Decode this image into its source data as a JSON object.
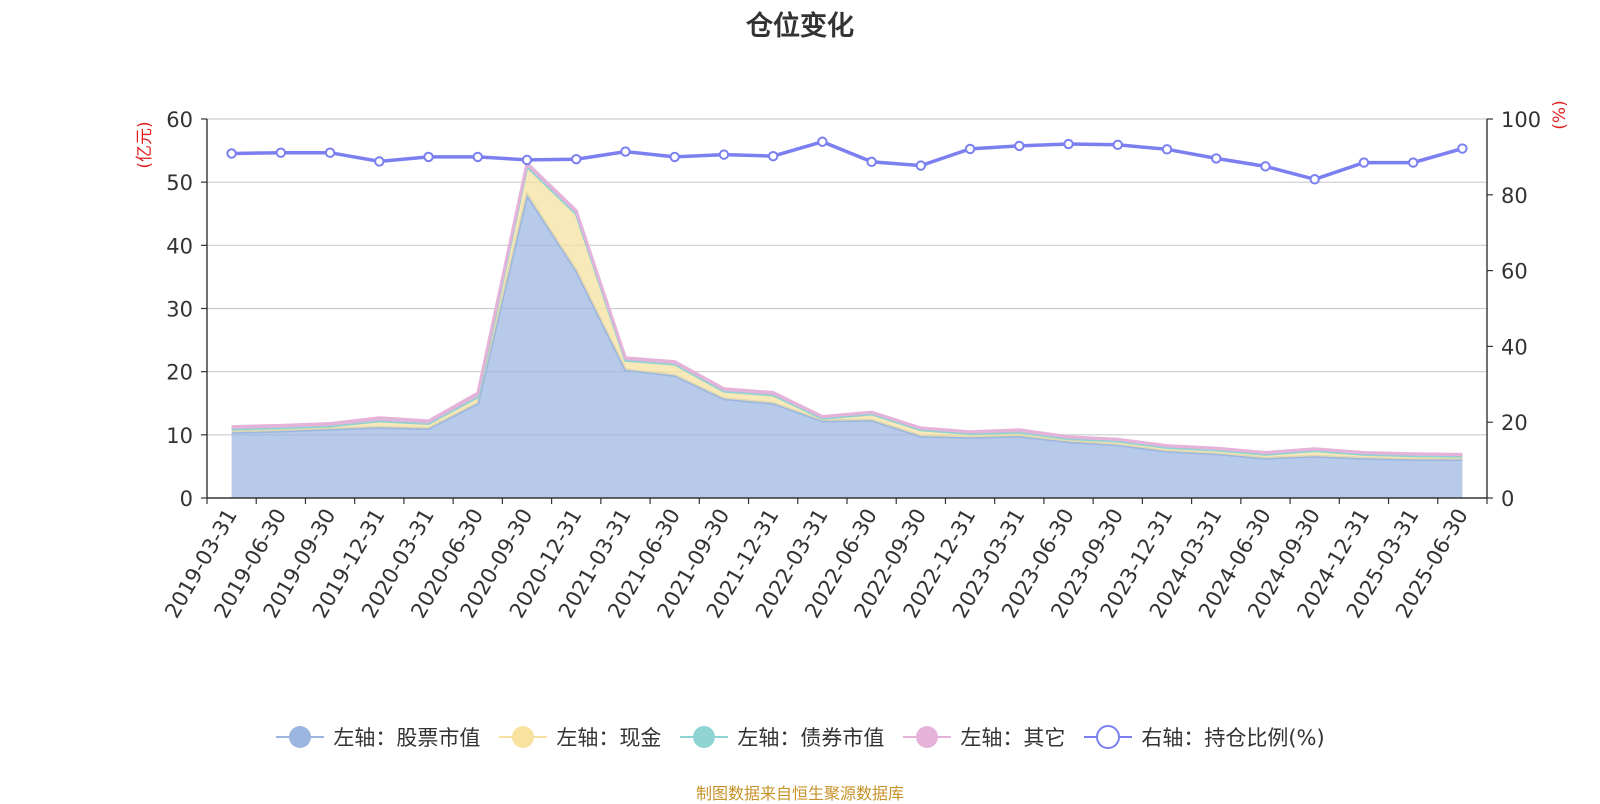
{
  "chart_data": {
    "type": "area",
    "title": "仓位变化",
    "ylabel_left": "(亿元)",
    "ylabel_right": "(%)",
    "ylim_left": [
      0,
      60
    ],
    "yticks_left": [
      0,
      10,
      20,
      30,
      40,
      50,
      60
    ],
    "ylim_right": [
      0,
      100
    ],
    "yticks_right": [
      0,
      20,
      40,
      60,
      80,
      100
    ],
    "grid": true,
    "legend_position": "bottom",
    "categories": [
      "2019-03-31",
      "2019-06-30",
      "2019-09-30",
      "2019-12-31",
      "2020-03-31",
      "2020-06-30",
      "2020-09-30",
      "2020-12-31",
      "2021-03-31",
      "2021-06-30",
      "2021-09-30",
      "2021-12-31",
      "2022-03-31",
      "2022-06-30",
      "2022-09-30",
      "2022-12-31",
      "2023-03-31",
      "2023-06-30",
      "2023-09-30",
      "2023-12-31",
      "2024-03-31",
      "2024-06-30",
      "2024-09-30",
      "2024-12-31",
      "2025-03-31",
      "2025-06-30"
    ],
    "series": [
      {
        "name": "左轴：股票市值",
        "axis": "left",
        "stacked": true,
        "color": "#9bb6e0",
        "values": [
          10.4,
          10.6,
          10.9,
          11.2,
          11.0,
          15.0,
          48.0,
          36.0,
          20.3,
          19.4,
          15.7,
          15.0,
          12.2,
          12.3,
          9.8,
          9.6,
          9.8,
          8.9,
          8.4,
          7.4,
          7.0,
          6.3,
          6.6,
          6.3,
          6.1,
          6.1
        ]
      },
      {
        "name": "左轴：现金",
        "axis": "left",
        "stacked": true,
        "color": "#f7e2a0",
        "values": [
          0.5,
          0.5,
          0.5,
          1.0,
          0.8,
          1.0,
          4.5,
          9.0,
          1.5,
          1.8,
          1.2,
          1.3,
          0.4,
          1.0,
          1.0,
          0.6,
          0.6,
          0.5,
          0.6,
          0.6,
          0.6,
          0.6,
          0.9,
          0.6,
          0.6,
          0.5
        ]
      },
      {
        "name": "左轴：债券市值",
        "axis": "left",
        "stacked": true,
        "color": "#8fd3d3",
        "values": [
          0,
          0,
          0,
          0,
          0,
          0,
          0,
          0,
          0,
          0,
          0,
          0,
          0,
          0,
          0,
          0,
          0,
          0,
          0,
          0,
          0,
          0,
          0,
          0,
          0,
          0
        ]
      },
      {
        "name": "左轴：其它",
        "axis": "left",
        "stacked": true,
        "color": "#e5b3d9",
        "values": [
          0.4,
          0.4,
          0.4,
          0.5,
          0.4,
          0.6,
          0.5,
          0.5,
          0.4,
          0.4,
          0.4,
          0.4,
          0.3,
          0.3,
          0.3,
          0.3,
          0.4,
          0.3,
          0.3,
          0.3,
          0.3,
          0.3,
          0.3,
          0.3,
          0.3,
          0.3
        ]
      },
      {
        "name": "右轴：持仓比例(%)",
        "axis": "right",
        "type": "line",
        "color": "#7b7ff0",
        "values": [
          90.9,
          91.1,
          91.1,
          88.8,
          90.0,
          90.0,
          89.2,
          89.4,
          91.4,
          90.0,
          90.6,
          90.2,
          94.0,
          88.7,
          87.7,
          92.1,
          92.9,
          93.4,
          93.2,
          92.0,
          89.6,
          87.5,
          84.1,
          88.5,
          88.5,
          92.2
        ]
      }
    ],
    "source_note": "制图数据来自恒生聚源数据库"
  }
}
